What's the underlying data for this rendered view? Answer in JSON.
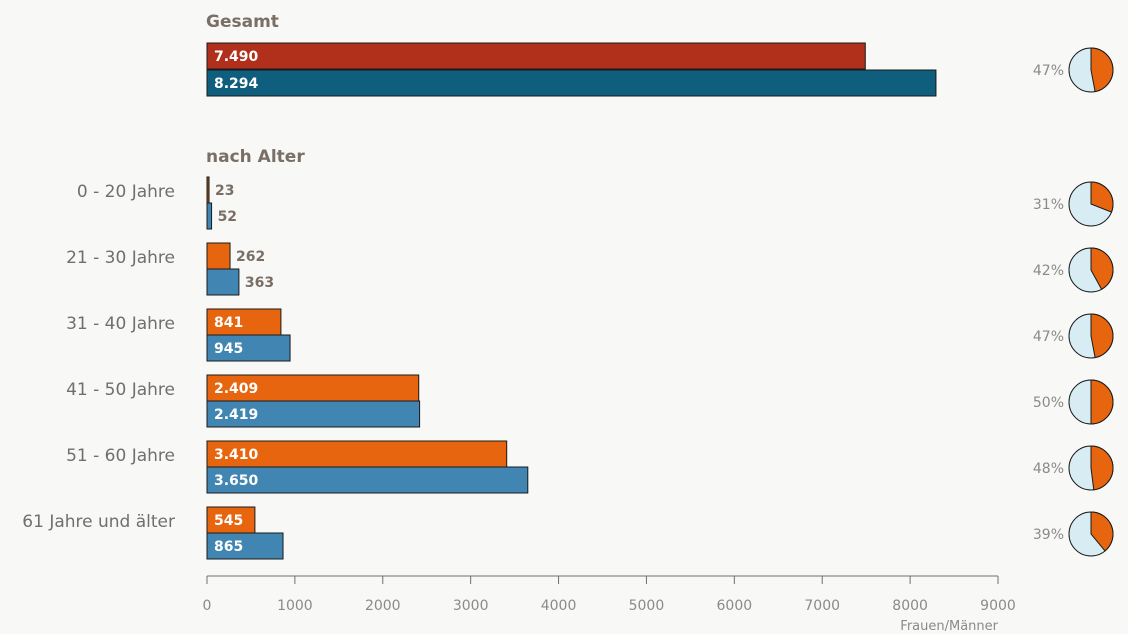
{
  "chart_data": {
    "type": "bar",
    "orientation": "horizontal",
    "xlabel": "Frauen/Männer",
    "xlim": [
      0,
      9000
    ],
    "xticks": [
      0,
      1000,
      2000,
      3000,
      4000,
      5000,
      6000,
      7000,
      8000,
      9000
    ],
    "xtick_labels": [
      "0",
      "1000",
      "2000",
      "3000",
      "4000",
      "5000",
      "6000",
      "7000",
      "8000",
      "9000"
    ],
    "total": {
      "title": "Gesamt",
      "women": 7490,
      "women_label": "7.490",
      "men": 8294,
      "men_label": "8.294",
      "share_label": "47%",
      "share": 0.47
    },
    "age_title": "nach Alter",
    "groups": [
      {
        "label": "0 - 20 Jahre",
        "women": 23,
        "women_label": "23",
        "men": 52,
        "men_label": "52",
        "share_label": "31%",
        "share": 0.31
      },
      {
        "label": "21 - 30 Jahre",
        "women": 262,
        "women_label": "262",
        "men": 363,
        "men_label": "363",
        "share_label": "42%",
        "share": 0.42
      },
      {
        "label": "31 - 40 Jahre",
        "women": 841,
        "women_label": "841",
        "men": 945,
        "men_label": "945",
        "share_label": "47%",
        "share": 0.47
      },
      {
        "label": "41 - 50 Jahre",
        "women": 2409,
        "women_label": "2.409",
        "men": 2419,
        "men_label": "2.419",
        "share_label": "50%",
        "share": 0.5
      },
      {
        "label": "51 - 60 Jahre",
        "women": 3410,
        "women_label": "3.410",
        "men": 3650,
        "men_label": "3.650",
        "share_label": "48%",
        "share": 0.48
      },
      {
        "label": "61 Jahre und älter",
        "women": 545,
        "women_label": "545",
        "men": 865,
        "men_label": "865",
        "share_label": "39%",
        "share": 0.39
      }
    ],
    "colors": {
      "total_women": "#b0301c",
      "total_men": "#0f5e7d",
      "women": "#e8650f",
      "women_small": "#a0521a",
      "men": "#4186b2",
      "pie_women": "#e8650f",
      "pie_rest": "#d7ecf3"
    }
  }
}
